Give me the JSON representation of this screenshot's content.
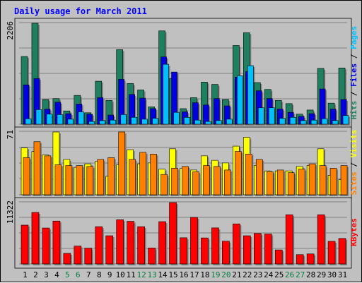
{
  "chart_data": {
    "type": "bar",
    "title": "Daily usage for March 2011",
    "colors": {
      "hits": "#1e8060",
      "files": "#0000e0",
      "pages": "#00c0ff",
      "visits": "#ffff00",
      "sites": "#ff8000",
      "kbytes": "#ff0000",
      "weekday_label": "#000000",
      "weekend_label": "#008040",
      "background": "#c0c0c0",
      "panel": "#c0c0c0"
    },
    "days": [
      "1",
      "2",
      "3",
      "4",
      "5",
      "6",
      "7",
      "8",
      "9",
      "10",
      "11",
      "12",
      "13",
      "14",
      "15",
      "16",
      "17",
      "18",
      "19",
      "20",
      "21",
      "22",
      "23",
      "24",
      "25",
      "26",
      "27",
      "28",
      "29",
      "30",
      "31"
    ],
    "weekend_days": [
      "5",
      "6",
      "12",
      "13",
      "19",
      "20",
      "26",
      "27"
    ],
    "panels": [
      {
        "id": "hits-files-pages",
        "ymax_label": "2206",
        "ymax": 2206,
        "right_labels": [
          {
            "text": "Hits",
            "color": "#1e8060"
          },
          {
            "text": " / ",
            "color": "#000000"
          },
          {
            "text": "Files",
            "color": "#0000e0"
          },
          {
            "text": " / ",
            "color": "#000000"
          },
          {
            "text": "Pages",
            "color": "#00c0ff"
          }
        ],
        "series": [
          {
            "name": "Hits",
            "color": "#1e8060",
            "values": [
              1480,
              2206,
              540,
              560,
              290,
              630,
              250,
              940,
              520,
              1630,
              890,
              750,
              380,
              2040,
              1000,
              340,
              580,
              920,
              870,
              540,
              1720,
              2000,
              910,
              760,
              520,
              450,
              220,
              310,
              1220,
              460,
              1230
            ]
          },
          {
            "name": "Files",
            "color": "#0000e0",
            "values": [
              860,
              1000,
              330,
              480,
              230,
              440,
              220,
              580,
              200,
              980,
              650,
              570,
              340,
              1470,
              1140,
              270,
              470,
              420,
              560,
              400,
              1030,
              1150,
              730,
              560,
              330,
              260,
              170,
              230,
              770,
              330,
              540
            ]
          },
          {
            "name": "Pages",
            "color": "#00c0ff",
            "values": [
              120,
              320,
              220,
              210,
              110,
              270,
              60,
              80,
              90,
              210,
              150,
              110,
              130,
              1310,
              260,
              150,
              90,
              60,
              80,
              110,
              1060,
              1280,
              360,
              360,
              130,
              150,
              80,
              90,
              120,
              80,
              190
            ]
          }
        ]
      },
      {
        "id": "visits-sites",
        "ymax_label": "71",
        "ymax": 71,
        "right_labels": [
          {
            "text": "Sites",
            "color": "#ff8000"
          },
          {
            "text": " / ",
            "color": "#000000"
          },
          {
            "text": "Visits",
            "color": "#ffff00"
          }
        ],
        "series": [
          {
            "name": "Visits",
            "color": "#ffff00",
            "values": [
              53,
              49,
              45,
              71,
              40,
              31,
              35,
              38,
              21,
              34,
              51,
              35,
              36,
              29,
              52,
              30,
              28,
              44,
              39,
              36,
              55,
              65,
              33,
              27,
              27,
              27,
              32,
              33,
              52,
              22,
              17
            ]
          },
          {
            "name": "Sites",
            "color": "#ff8000",
            "values": [
              42,
              60,
              44,
              34,
              33,
              33,
              32,
              40,
              42,
              71,
              40,
              48,
              46,
              23,
              30,
              32,
              26,
              33,
              32,
              28,
              49,
              46,
              40,
              26,
              28,
              25,
              29,
              35,
              33,
              30,
              33
            ]
          }
        ]
      },
      {
        "id": "kbytes",
        "ymax_label": "11322",
        "ymax": 11322,
        "right_labels": [
          {
            "text": "KBytes",
            "color": "#ff0000"
          }
        ],
        "series": [
          {
            "name": "KBytes",
            "color": "#ff0000",
            "values": [
              7160,
              9500,
              6630,
              7910,
              1950,
              3300,
              2920,
              6870,
              5200,
              8150,
              7860,
              6870,
              2940,
              7800,
              11322,
              4830,
              8590,
              4800,
              6650,
              4200,
              7390,
              5200,
              5620,
              5520,
              2590,
              9070,
              1720,
              1850,
              9070,
              4170,
              4700
            ]
          }
        ]
      }
    ]
  }
}
